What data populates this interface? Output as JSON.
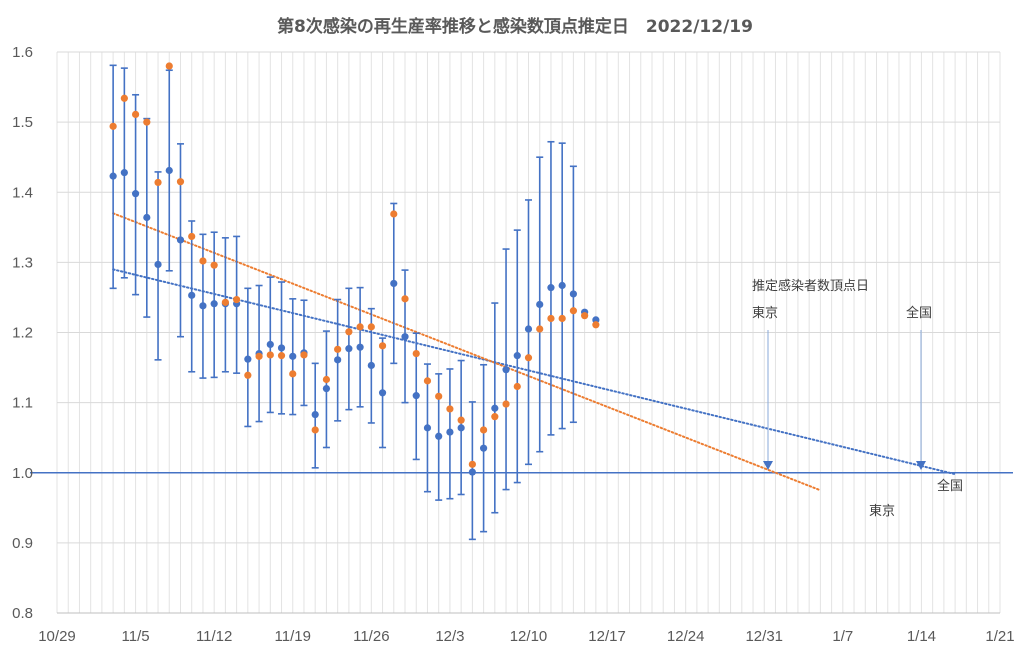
{
  "chart_data": {
    "type": "scatter",
    "title": "第8次感染の再生産率推移と感染数頂点推定日　2022/12/19",
    "x_ticks": [
      "10/29",
      "11/5",
      "11/12",
      "11/19",
      "11/26",
      "12/3",
      "12/10",
      "12/17",
      "12/24",
      "12/31",
      "1/7",
      "1/14",
      "1/21"
    ],
    "y_ticks": [
      "0.8",
      "0.9",
      "1.0",
      "1.1",
      "1.2",
      "1.3",
      "1.4",
      "1.5",
      "1.6"
    ],
    "ylim": [
      0.8,
      1.6
    ],
    "xlim_days": [
      0,
      84
    ],
    "x_origin_date": "2022/10/29",
    "grid": "vertical daily lines, horizontal at 0.1",
    "reference_line": {
      "y": 1.0,
      "color": "#4472c4"
    },
    "colors": {
      "national": "#4472c4",
      "tokyo": "#ed7d31"
    },
    "series": [
      {
        "series_key": "national",
        "color": "#4472c4",
        "x_days": [
          5,
          6,
          7,
          8,
          9,
          10,
          11,
          12,
          13,
          14,
          15,
          16,
          17,
          18,
          19,
          20,
          21,
          22,
          23,
          24,
          25,
          26,
          27,
          28,
          29,
          30,
          31,
          32,
          33,
          34,
          35,
          36,
          37,
          38,
          39,
          40,
          41,
          42,
          43,
          44,
          45,
          46,
          47,
          48
        ],
        "y": [
          1.423,
          1.428,
          1.398,
          1.364,
          1.297,
          1.431,
          1.332,
          1.253,
          1.238,
          1.241,
          1.241,
          1.241,
          1.162,
          1.17,
          1.183,
          1.178,
          1.166,
          1.171,
          1.083,
          1.12,
          1.161,
          1.177,
          1.179,
          1.153,
          1.114,
          1.27,
          1.194,
          1.11,
          1.064,
          1.052,
          1.058,
          1.064,
          1.001,
          1.035,
          1.092,
          1.147,
          1.167,
          1.205,
          1.24,
          1.264,
          1.267,
          1.255,
          1.229,
          1.218
        ],
        "err_hi": [
          1.581,
          1.577,
          1.539,
          1.505,
          1.429,
          1.574,
          1.469,
          1.359,
          1.34,
          1.343,
          1.335,
          1.337,
          1.263,
          1.267,
          1.279,
          1.272,
          1.248,
          1.246,
          1.156,
          1.202,
          1.247,
          1.263,
          1.264,
          1.234,
          1.192,
          1.384,
          1.289,
          1.199,
          1.155,
          1.141,
          1.148,
          1.16,
          1.101,
          1.154,
          1.242,
          1.319,
          1.346,
          1.389,
          1.45,
          1.472,
          1.47,
          1.437,
          null,
          null
        ],
        "err_lo": [
          1.263,
          1.278,
          1.254,
          1.222,
          1.161,
          1.288,
          1.194,
          1.144,
          1.135,
          1.136,
          1.144,
          1.142,
          1.066,
          1.073,
          1.086,
          1.084,
          1.083,
          1.096,
          1.007,
          1.036,
          1.074,
          1.09,
          1.094,
          1.071,
          1.036,
          1.156,
          1.1,
          1.019,
          0.973,
          0.961,
          0.963,
          0.969,
          0.905,
          0.916,
          0.943,
          0.976,
          0.986,
          1.012,
          1.03,
          1.054,
          1.063,
          1.072,
          null,
          null
        ]
      },
      {
        "series_key": "tokyo",
        "color": "#ed7d31",
        "x_days": [
          5,
          6,
          7,
          8,
          9,
          10,
          11,
          12,
          13,
          14,
          15,
          16,
          17,
          18,
          19,
          20,
          21,
          22,
          23,
          24,
          25,
          26,
          27,
          28,
          29,
          30,
          31,
          32,
          33,
          34,
          35,
          36,
          37,
          38,
          39,
          40,
          41,
          42,
          43,
          44,
          45,
          46,
          47,
          48
        ],
        "y": [
          1.494,
          1.534,
          1.511,
          1.5,
          1.414,
          1.58,
          1.415,
          1.337,
          1.302,
          1.296,
          1.243,
          1.247,
          1.139,
          1.166,
          1.168,
          1.167,
          1.141,
          1.168,
          1.061,
          1.133,
          1.176,
          1.201,
          1.208,
          1.208,
          1.181,
          1.369,
          1.248,
          1.17,
          1.131,
          1.109,
          1.091,
          1.075,
          1.012,
          1.061,
          1.08,
          1.098,
          1.123,
          1.164,
          1.205,
          1.22,
          1.22,
          1.231,
          1.224,
          1.211
        ]
      }
    ],
    "trendlines": [
      {
        "series_key": "national",
        "x_days": [
          5,
          80
        ],
        "y": [
          1.29,
          0.998
        ]
      },
      {
        "series_key": "tokyo",
        "x_days": [
          5,
          68
        ],
        "y": [
          1.37,
          0.975
        ]
      }
    ]
  },
  "annotations": {
    "peak_title": "推定感染者数頂点日",
    "tokyo_label": "東京",
    "national_label": "全国",
    "national_label_2": "全国",
    "tokyo_label_2": "東京"
  }
}
